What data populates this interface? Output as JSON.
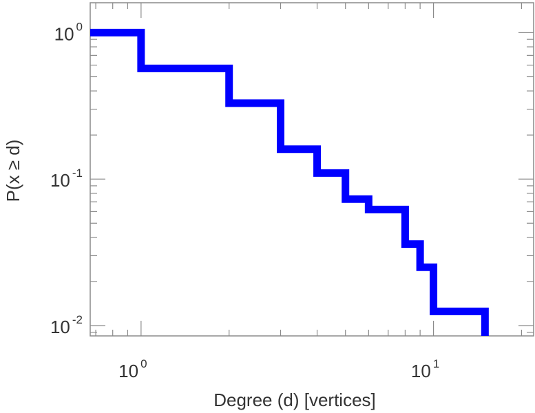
{
  "chart_data": {
    "type": "line",
    "style": "step",
    "title": "",
    "xlabel": "Degree (d) [vertices]",
    "ylabel": "P(x ≥ d)",
    "x_scale": "log",
    "y_scale": "log",
    "xlim": [
      0.67,
      22
    ],
    "ylim": [
      0.0085,
      1.6
    ],
    "grid": false,
    "legend": "none",
    "x_ticks": [
      {
        "base": "10",
        "exp": "0",
        "value": 1
      },
      {
        "base": "10",
        "exp": "1",
        "value": 10
      }
    ],
    "y_ticks": [
      {
        "base": "10",
        "exp": "0",
        "value": 1
      },
      {
        "base": "10",
        "exp": "-1",
        "value": 0.1
      },
      {
        "base": "10",
        "exp": "-2",
        "value": 0.01
      }
    ],
    "series": [
      {
        "color": "#0000ff",
        "x": [
          0.67,
          1,
          2,
          3,
          4,
          5,
          6,
          8,
          9,
          10,
          15
        ],
        "y": [
          1.0,
          0.57,
          0.33,
          0.16,
          0.11,
          0.073,
          0.062,
          0.036,
          0.025,
          0.0125,
          0.0125
        ]
      }
    ]
  }
}
